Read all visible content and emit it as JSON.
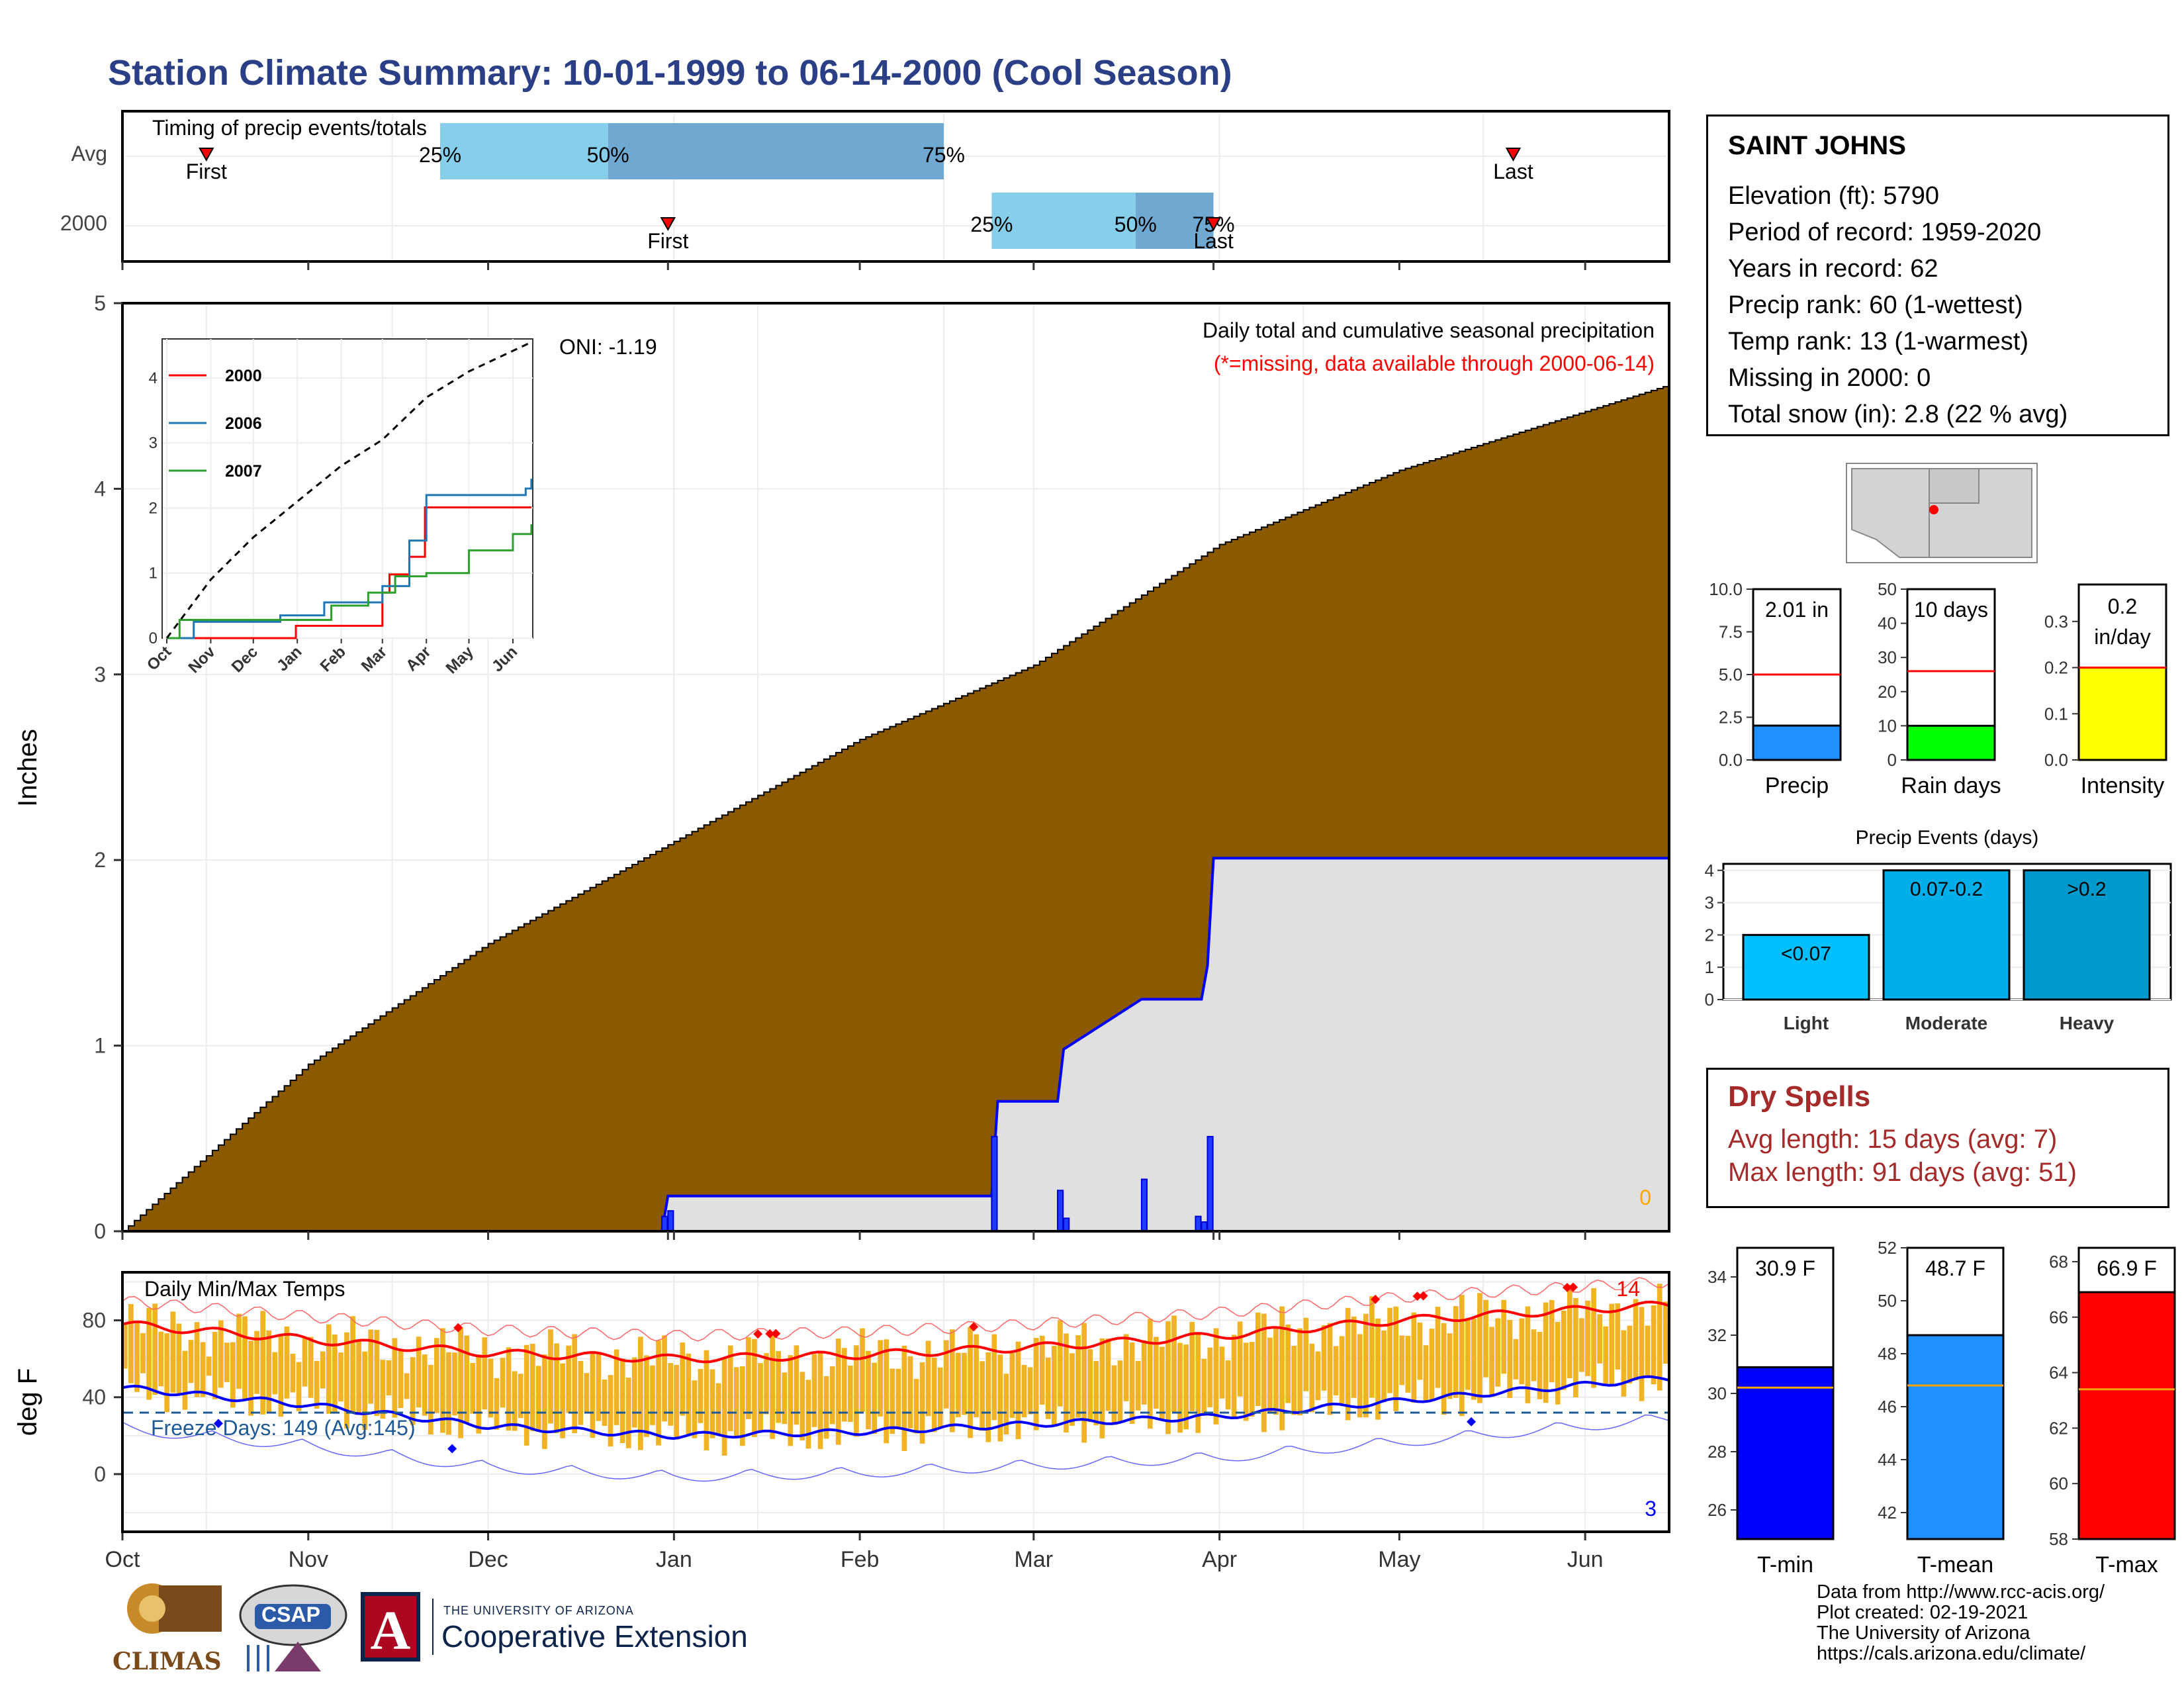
{
  "title": "Station Climate Summary: 10-01-1999 to 06-14-2000 (Cool Season)",
  "timing": {
    "label": "Timing of precip events/totals",
    "rows": [
      {
        "name": "Avg",
        "p25": "1999-11-23",
        "p50": "1999-12-21",
        "p75": "2000-02-15",
        "first": "1999-10-15",
        "last": "2000-05-20",
        "first_label": "First",
        "last_label": "Last"
      },
      {
        "name": "2000",
        "p25": "2000-02-23",
        "p50": "2000-03-18",
        "p75": "2000-03-31",
        "first": "1999-12-31",
        "last": "2000-03-31",
        "first_label": "First",
        "last_label": "Last"
      }
    ],
    "pct_labels": [
      "25%",
      "50%",
      "75%"
    ],
    "colors": {
      "light": "#87ceeb",
      "dark": "#6fa8d0",
      "marker": "#ff0000"
    }
  },
  "main_chart": {
    "ylabel": "Inches",
    "y_ticks": [
      "0",
      "1",
      "2",
      "3",
      "4",
      "5"
    ],
    "oni": "ONI: -1.19",
    "header": "Daily total and cumulative seasonal precipitation",
    "missing_note": "(*=missing, data available through 2000-06-14)",
    "missing_count": "0",
    "colors": {
      "avg_fill": "#8b5a00",
      "year_fill": "#e0e0e0",
      "year_line": "#0000ff",
      "missing": "#ffa500",
      "note": "#ff0000"
    }
  },
  "inset": {
    "x_ticks": [
      "Oct",
      "Nov",
      "Dec",
      "Jan",
      "Feb",
      "Mar",
      "Apr",
      "May",
      "Jun"
    ],
    "y_ticks": [
      "0",
      "1",
      "2",
      "3",
      "4"
    ],
    "legend": [
      {
        "name": "2000",
        "color": "#ff0000"
      },
      {
        "name": "2006",
        "color": "#1f77b4"
      },
      {
        "name": "2007",
        "color": "#2ca02c"
      }
    ]
  },
  "gauges_precip": [
    {
      "label": "Precip",
      "value_text": "2.01 in",
      "value": 2.01,
      "avg": 5.0,
      "ylim": [
        0,
        10
      ],
      "ticks": [
        "0.0",
        "2.5",
        "5.0",
        "7.5",
        "10.0"
      ],
      "color": "#1e90ff"
    },
    {
      "label": "Rain days",
      "value_text": "10 days",
      "value": 10,
      "avg": 26,
      "ylim": [
        0,
        50
      ],
      "ticks": [
        "0",
        "10",
        "20",
        "30",
        "40",
        "50"
      ],
      "color": "#00ff00"
    },
    {
      "label": "Intensity",
      "value_text": "0.2 in/day",
      "value_line1": "0.2",
      "value_line2": "in/day",
      "value": 0.2,
      "avg": 0.2,
      "ylim": [
        0,
        0.38
      ],
      "ticks": [
        "0.0",
        "0.1",
        "0.2",
        "0.3"
      ],
      "color": "#ffff00"
    }
  ],
  "precip_events": {
    "title": "Precip Events (days)",
    "categories": [
      "Light",
      "Moderate",
      "Heavy"
    ],
    "bar_labels": [
      "<0.07",
      "0.07-0.2",
      ">0.2"
    ],
    "values": [
      2,
      4,
      4
    ],
    "y_ticks": [
      "0",
      "1",
      "2",
      "3",
      "4"
    ],
    "colors": [
      "#00bfff",
      "#00aeea",
      "#0099cc"
    ]
  },
  "station": {
    "name": "SAINT JOHNS",
    "lines": [
      "Elevation (ft): 5790",
      "Period of record: 1959-2020",
      "Years in record: 62",
      "Precip rank: 60 (1-wettest)",
      "Temp rank: 13 (1-warmest)",
      "Missing in 2000: 0",
      "Total snow (in): 2.8 (22 % avg)"
    ]
  },
  "dry_spells": {
    "title": "Dry Spells",
    "avg_line": "Avg length: 15 days (avg: 7)",
    "max_line": "Max length: 91 days (avg: 51)"
  },
  "temp_chart": {
    "ylabel": "deg F",
    "label": "Daily Min/Max Temps",
    "freeze": "Freeze Days: 149 (Avg:145)",
    "y_ticks": [
      "0",
      "40",
      "80"
    ],
    "x_ticks": [
      "Oct",
      "Nov",
      "Dec",
      "Jan",
      "Feb",
      "Mar",
      "Apr",
      "May",
      "Jun"
    ],
    "record_high_count": "14",
    "record_low_count": "3",
    "freeze_line": 32,
    "colors": {
      "bar": "#f0b323",
      "max_avg": "#ff0000",
      "min_avg": "#0000ff",
      "freeze": "#1f5a96"
    }
  },
  "gauges_temp": [
    {
      "label": "T-min",
      "value_text": "30.9 F",
      "value": 30.9,
      "avg": 30.2,
      "ylim": [
        25,
        35
      ],
      "ticks": [
        "26",
        "28",
        "30",
        "32",
        "34"
      ],
      "color": "#0000ff"
    },
    {
      "label": "T-mean",
      "value_text": "48.7 F",
      "value": 48.7,
      "avg": 46.8,
      "ylim": [
        41,
        52
      ],
      "ticks": [
        "42",
        "44",
        "46",
        "48",
        "50",
        "52"
      ],
      "color": "#1e90ff"
    },
    {
      "label": "T-max",
      "value_text": "66.9 F",
      "value": 66.9,
      "avg": 63.4,
      "ylim": [
        58,
        68.5
      ],
      "ticks": [
        "58",
        "60",
        "62",
        "64",
        "66",
        "68"
      ],
      "color": "#ff0000"
    }
  ],
  "credits": [
    "Data from http://www.rcc-acis.org/",
    "Plot created: 02-19-2021",
    "The University of Arizona",
    "https://cals.arizona.edu/climate/"
  ],
  "logos": {
    "climas": "CLIMAS",
    "csap": "CSAP",
    "ua_small": "THE UNIVERSITY OF ARIZONA",
    "ua_big": "Cooperative Extension",
    "ua_letter": "A"
  },
  "chart_data": [
    {
      "type": "area",
      "title": "Daily total and cumulative seasonal precipitation",
      "xlabel": "",
      "ylabel": "Inches",
      "ylim": [
        0,
        5
      ],
      "series": [
        {
          "name": "",
          "x": [
            "1999-10-01",
            "1999-11-01",
            "1999-12-01",
            "2000-01-01",
            "2000-02-01",
            "2000-03-01",
            "2000-04-01",
            "2000-05-01",
            "2000-06-14"
          ],
          "values": [
            0.0,
            0.9,
            1.55,
            2.1,
            2.65,
            3.05,
            3.7,
            4.1,
            4.55
          ]
        },
        {
          "name": "",
          "x": [
            "1999-10-01",
            "1999-12-30",
            "1999-12-31",
            "2000-02-23",
            "2000-02-24",
            "2000-03-05",
            "2000-03-06",
            "2000-03-19",
            "2000-03-29",
            "2000-03-30",
            "2000-03-31",
            "2000-06-14"
          ],
          "values": [
            0.0,
            0.0,
            0.19,
            0.19,
            0.7,
            0.7,
            0.98,
            1.25,
            1.25,
            1.43,
            2.01,
            2.01
          ]
        }
      ],
      "daily_bars": {
        "x": [
          "1999-12-30",
          "1999-12-31",
          "2000-02-23",
          "2000-03-05",
          "2000-03-06",
          "2000-03-19",
          "2000-03-28",
          "2000-03-29",
          "2000-03-30"
        ],
        "values": [
          0.08,
          0.11,
          0.51,
          0.22,
          0.07,
          0.28,
          0.08,
          0.05,
          0.51
        ]
      }
    },
    {
      "type": "line",
      "title": "",
      "xlabel": "",
      "ylabel": "",
      "ylim": [
        0,
        4.6
      ],
      "series": [
        {
          "name": "2000",
          "x": [
            "1999-10-01",
            "1999-12-31",
            "2000-01-02",
            "2000-02-22",
            "2000-03-01",
            "2000-03-06",
            "2000-03-20",
            "2000-03-31",
            "2000-06-14"
          ],
          "values": [
            0,
            0.19,
            0.19,
            0.19,
            0.7,
            0.98,
            1.25,
            2.01,
            2.01
          ]
        },
        {
          "name": "2006",
          "x": [
            "1999-10-01",
            "1999-10-20",
            "1999-12-20",
            "2000-01-20",
            "2000-03-01",
            "2000-03-20",
            "2000-04-01",
            "2000-06-10",
            "2000-06-14"
          ],
          "values": [
            0,
            0.25,
            0.35,
            0.55,
            0.8,
            1.5,
            2.2,
            2.3,
            2.45
          ]
        },
        {
          "name": "2007",
          "x": [
            "1999-10-01",
            "1999-10-10",
            "1999-12-20",
            "2000-01-25",
            "2000-02-20",
            "2000-03-10",
            "2000-04-01",
            "2000-05-01",
            "2000-06-01",
            "2000-06-14"
          ],
          "values": [
            0,
            0.28,
            0.28,
            0.5,
            0.7,
            0.95,
            1.0,
            1.35,
            1.6,
            1.75
          ]
        },
        {
          "name": "",
          "x": [
            "1999-10-01",
            "1999-11-01",
            "1999-12-01",
            "2000-01-01",
            "2000-02-01",
            "2000-03-01",
            "2000-04-01",
            "2000-05-01",
            "2000-06-14"
          ],
          "values": [
            0,
            0.9,
            1.55,
            2.1,
            2.65,
            3.05,
            3.7,
            4.1,
            4.55
          ]
        }
      ]
    },
    {
      "type": "bar",
      "title": "Precip Events (days)",
      "categories": [
        "Light",
        "Moderate",
        "Heavy"
      ],
      "values": [
        2,
        4,
        4
      ],
      "ylim": [
        0,
        4.2
      ]
    },
    {
      "type": "bar",
      "title": "",
      "categories": [
        "Precip",
        "Rain days",
        "Intensity"
      ],
      "values": [
        2.01,
        10,
        0.2
      ],
      "averages": [
        5.0,
        26,
        0.2
      ]
    },
    {
      "type": "bar",
      "title": "Daily Min/Max Temps",
      "ylabel": "deg F",
      "ylim": [
        -30,
        105
      ],
      "series": [
        {
          "name": "",
          "x": [
            "1999-10-01",
            "1999-11-01",
            "1999-12-01",
            "2000-01-01",
            "2000-02-01",
            "2000-03-01",
            "2000-04-01",
            "2000-05-01",
            "2000-06-14"
          ],
          "values": [
            78,
            70,
            63,
            60,
            62,
            66,
            72,
            80,
            88
          ]
        },
        {
          "name": "",
          "x": [
            "1999-10-01",
            "1999-11-01",
            "1999-12-01",
            "2000-01-01",
            "2000-02-01",
            "2000-03-01",
            "2000-04-01",
            "2000-05-01",
            "2000-06-14"
          ],
          "values": [
            45,
            36,
            25,
            20,
            22,
            26,
            30,
            38,
            50
          ]
        }
      ]
    },
    {
      "type": "bar",
      "title": "",
      "categories": [
        "T-min",
        "T-mean",
        "T-max"
      ],
      "values": [
        30.9,
        48.7,
        66.9
      ],
      "averages": [
        30.2,
        46.8,
        63.4
      ]
    }
  ]
}
